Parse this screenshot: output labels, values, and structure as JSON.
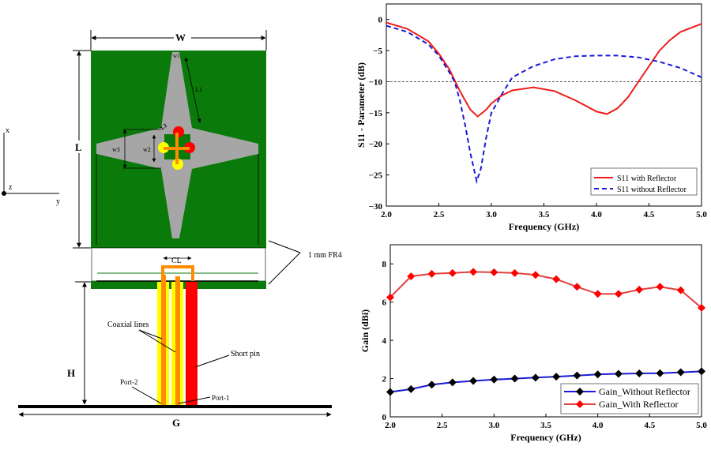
{
  "diagram": {
    "labels": {
      "W": "W",
      "L": "L",
      "H": "H",
      "G": "G",
      "w1": "w1",
      "L1": "L1",
      "w3": "w3",
      "w2": "w2",
      "L2": "L2",
      "CL": "CL",
      "fr4": "1 mm FR4",
      "coax": "Coaxial lines",
      "short_pin": "Short pin",
      "port2": "Port-2",
      "port1": "Port-1",
      "axis_x": "x",
      "axis_y": "y",
      "axis_z": "z"
    },
    "colors": {
      "substrate": "#0a7a0a",
      "patch": "#a6a6a6",
      "coax_outer": "#ffff00",
      "coax_inner": "#ff8c00",
      "short_pin": "#ff0000"
    }
  },
  "chart_data": [
    {
      "type": "line",
      "xlabel": "Frequency (GHz)",
      "ylabel": "S11 - Parameter (dB)",
      "xlim": [
        2.0,
        5.0
      ],
      "ylim": [
        -30,
        2.5
      ],
      "xticks": [
        "2.0",
        "2.5",
        "3.0",
        "3.5",
        "4.0",
        "4.5",
        "5.0"
      ],
      "yticks": [
        "0",
        "-5",
        "-10",
        "-15",
        "-20",
        "-25",
        "-30"
      ],
      "reference_line": -10,
      "grid": false,
      "legend_position": "bottom-right",
      "series": [
        {
          "name": "S11 with Reflector",
          "color": "#ee1c1c",
          "style": "solid",
          "x": [
            2.0,
            2.2,
            2.4,
            2.5,
            2.6,
            2.7,
            2.8,
            2.87,
            2.95,
            3.0,
            3.1,
            3.2,
            3.4,
            3.6,
            3.8,
            4.0,
            4.1,
            4.2,
            4.3,
            4.4,
            4.5,
            4.6,
            4.7,
            4.8,
            5.0
          ],
          "y": [
            -0.5,
            -1.5,
            -3.5,
            -5.5,
            -8,
            -11.5,
            -14.5,
            -15.6,
            -14.5,
            -13.5,
            -12.2,
            -11.4,
            -10.9,
            -11.5,
            -13,
            -14.8,
            -15.2,
            -14.3,
            -12.5,
            -10,
            -7.5,
            -5,
            -3.3,
            -2,
            -0.7
          ]
        },
        {
          "name": "S11 without Reflector",
          "color": "#1a1ad6",
          "style": "dashed",
          "x": [
            2.0,
            2.2,
            2.4,
            2.5,
            2.6,
            2.65,
            2.7,
            2.75,
            2.8,
            2.86,
            2.9,
            2.95,
            3.0,
            3.1,
            3.2,
            3.4,
            3.6,
            3.8,
            4.0,
            4.2,
            4.4,
            4.6,
            4.8,
            5.0
          ],
          "y": [
            -1,
            -2,
            -4,
            -5.8,
            -8.5,
            -10,
            -13,
            -17,
            -21.5,
            -26,
            -24,
            -19,
            -15,
            -12,
            -9.3,
            -7.5,
            -6.4,
            -5.9,
            -5.8,
            -5.8,
            -6.1,
            -6.8,
            -7.8,
            -9.3
          ]
        }
      ]
    },
    {
      "type": "line",
      "xlabel": "Frequency (GHz)",
      "ylabel": "Gain (dBi)",
      "xlim": [
        2.0,
        5.0
      ],
      "ylim": [
        0,
        9
      ],
      "xticks": [
        "2.0",
        "2.5",
        "3.0",
        "3.5",
        "4.0",
        "4.5",
        "5.0"
      ],
      "yticks": [
        "0",
        "2",
        "4",
        "6",
        "8"
      ],
      "grid": false,
      "legend_position": "bottom-right",
      "x": [
        2.0,
        2.2,
        2.4,
        2.6,
        2.8,
        3.0,
        3.2,
        3.4,
        3.6,
        3.8,
        4.0,
        4.2,
        4.4,
        4.6,
        4.8,
        5.0
      ],
      "series": [
        {
          "name": "Gain_Without Reflector",
          "color": "#1a1ad6",
          "marker_color": "#000000",
          "marker": "diamond",
          "values": [
            1.3,
            1.45,
            1.68,
            1.8,
            1.88,
            1.95,
            2.0,
            2.05,
            2.1,
            2.16,
            2.22,
            2.25,
            2.27,
            2.28,
            2.33,
            2.38
          ]
        },
        {
          "name": "Gain_With Reflector",
          "color": "#e04040",
          "marker_color": "#ff0000",
          "marker": "diamond",
          "values": [
            6.25,
            7.35,
            7.48,
            7.52,
            7.58,
            7.56,
            7.52,
            7.42,
            7.2,
            6.8,
            6.43,
            6.43,
            6.65,
            6.8,
            6.62,
            5.7
          ]
        }
      ]
    }
  ]
}
